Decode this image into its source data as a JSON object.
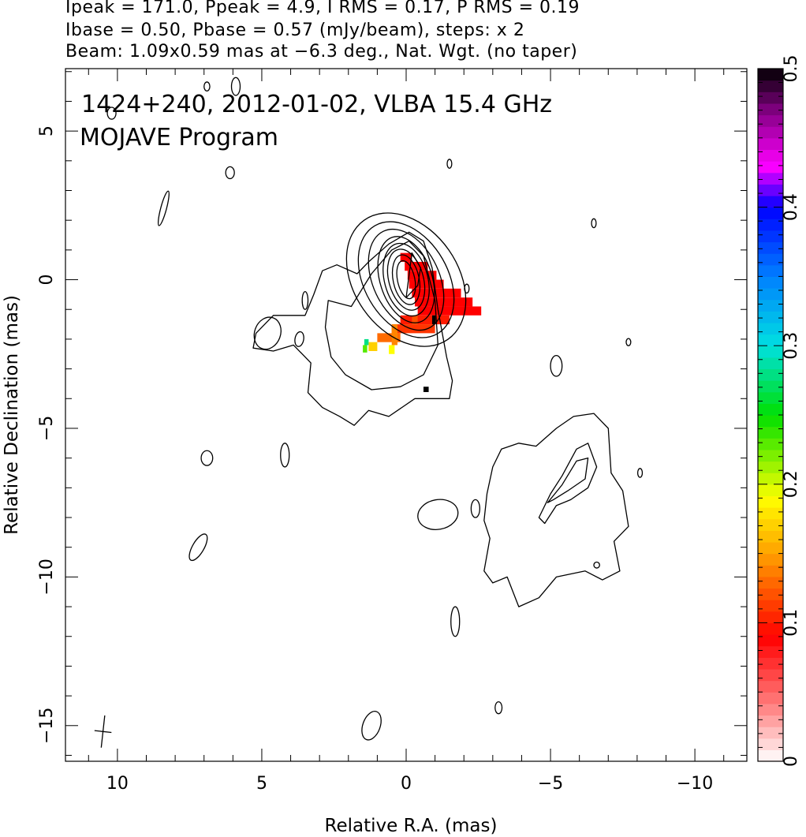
{
  "header": {
    "line1": "Ipeak = 171.0, Ppeak = 4.9, I RMS = 0.17, P RMS = 0.19",
    "line2": "Ibase = 0.50, Pbase = 0.57 (mJy/beam), steps: x 2",
    "line3": "Beam: 1.09x0.59 mas at −6.3 deg., Nat. Wgt. (no taper)"
  },
  "chart_data": {
    "type": "heatmap",
    "annotations": [
      "1424+240, 2012-01-02, VLBA 15.4 GHz",
      "MOJAVE Program"
    ],
    "xlabel": "Relative R.A. (mas)",
    "ylabel": "Relative Declination (mas)",
    "xlim": [
      11.8,
      -11.8
    ],
    "ylim": [
      -16.2,
      7.1
    ],
    "x_ticks": [
      {
        "value": 10,
        "label": "10"
      },
      {
        "value": 5,
        "label": "5"
      },
      {
        "value": 0,
        "label": "0"
      },
      {
        "value": -5,
        "label": "−5"
      },
      {
        "value": -10,
        "label": "−10"
      }
    ],
    "y_ticks": [
      {
        "value": 5,
        "label": "5"
      },
      {
        "value": 0,
        "label": "0"
      },
      {
        "value": -5,
        "label": "−5"
      },
      {
        "value": -10,
        "label": "−10"
      },
      {
        "value": -15,
        "label": "−15"
      }
    ],
    "colorbar": {
      "min": 0,
      "max": 0.5,
      "ticks": [
        {
          "value": 0,
          "label": "0"
        },
        {
          "value": 0.1,
          "label": "0.1"
        },
        {
          "value": 0.2,
          "label": "0.2"
        },
        {
          "value": 0.3,
          "label": "0.3"
        },
        {
          "value": 0.4,
          "label": "0.4"
        },
        {
          "value": 0.5,
          "label": "0.5"
        }
      ],
      "stops": [
        {
          "v": 0.0,
          "color": "#ffffff"
        },
        {
          "v": 0.04,
          "color": "#ff8080"
        },
        {
          "v": 0.09,
          "color": "#ff0000"
        },
        {
          "v": 0.15,
          "color": "#ffa000"
        },
        {
          "v": 0.19,
          "color": "#ffff00"
        },
        {
          "v": 0.25,
          "color": "#00e000"
        },
        {
          "v": 0.3,
          "color": "#00e0e0"
        },
        {
          "v": 0.35,
          "color": "#0080ff"
        },
        {
          "v": 0.4,
          "color": "#0000ff"
        },
        {
          "v": 0.43,
          "color": "#ff00ff"
        },
        {
          "v": 0.47,
          "color": "#800080"
        },
        {
          "v": 0.5,
          "color": "#000000"
        }
      ]
    },
    "core_contours": {
      "center": [
        0.0,
        0.0
      ],
      "levels": [
        {
          "a": 0.3,
          "b": 0.65,
          "angle": -12
        },
        {
          "a": 0.45,
          "b": 0.85,
          "angle": -12
        },
        {
          "a": 0.6,
          "b": 1.05,
          "angle": -15
        },
        {
          "a": 0.75,
          "b": 1.25,
          "angle": -15
        },
        {
          "a": 0.9,
          "b": 1.5,
          "angle": -18
        },
        {
          "a": 1.15,
          "b": 1.8,
          "angle": -25
        },
        {
          "a": 1.45,
          "b": 2.1,
          "angle": -30
        },
        {
          "a": 1.8,
          "b": 2.45,
          "angle": -35
        }
      ]
    },
    "outer_contours": [
      [
        [
          1.7,
          0.2
        ],
        [
          2.4,
          0.5
        ],
        [
          2.9,
          0.3
        ],
        [
          3.2,
          -0.5
        ],
        [
          3.5,
          -1.2
        ],
        [
          4.6,
          -1.2
        ],
        [
          5.2,
          -1.8
        ],
        [
          5.3,
          -2.3
        ],
        [
          4.6,
          -2.4
        ],
        [
          3.9,
          -2.2
        ],
        [
          3.3,
          -2.8
        ],
        [
          3.4,
          -3.8
        ],
        [
          2.9,
          -4.3
        ],
        [
          2.3,
          -4.6
        ],
        [
          1.8,
          -4.9
        ],
        [
          1.3,
          -4.4
        ],
        [
          0.6,
          -4.6
        ],
        [
          -0.3,
          -4.0
        ],
        [
          -1.5,
          -4.0
        ],
        [
          -1.6,
          -3.4
        ],
        [
          -1.4,
          -2.6
        ],
        [
          -1.1,
          -1.0
        ],
        [
          -0.9,
          0.4
        ],
        [
          -0.6,
          1.3
        ],
        [
          -0.1,
          1.6
        ],
        [
          0.6,
          1.2
        ],
        [
          1.3,
          0.6
        ]
      ],
      [
        [
          1.9,
          -0.9
        ],
        [
          2.7,
          -0.7
        ],
        [
          2.8,
          -1.6
        ],
        [
          2.6,
          -2.6
        ],
        [
          2.1,
          -3.2
        ],
        [
          1.2,
          -3.7
        ],
        [
          0.2,
          -3.6
        ],
        [
          -0.6,
          -3.2
        ],
        [
          -1.1,
          -2.2
        ],
        [
          -1.0,
          -0.7
        ],
        [
          -0.6,
          0.8
        ],
        [
          -0.1,
          1.3
        ],
        [
          0.5,
          1.0
        ],
        [
          1.2,
          0.2
        ]
      ],
      [
        [
          -3.0,
          -6.3
        ],
        [
          -3.3,
          -5.7
        ],
        [
          -3.9,
          -5.5
        ],
        [
          -4.5,
          -5.6
        ],
        [
          -5.2,
          -5.0
        ],
        [
          -5.8,
          -4.6
        ],
        [
          -6.5,
          -4.5
        ],
        [
          -7.0,
          -5.0
        ],
        [
          -7.1,
          -6.5
        ],
        [
          -7.5,
          -7.1
        ],
        [
          -7.7,
          -8.3
        ],
        [
          -7.2,
          -8.8
        ],
        [
          -7.4,
          -9.8
        ],
        [
          -6.8,
          -10.1
        ],
        [
          -6.2,
          -9.8
        ],
        [
          -5.2,
          -10.0
        ],
        [
          -4.6,
          -10.7
        ],
        [
          -3.9,
          -11.0
        ],
        [
          -3.5,
          -10.0
        ],
        [
          -3.0,
          -10.2
        ],
        [
          -2.7,
          -9.8
        ],
        [
          -2.9,
          -8.7
        ],
        [
          -2.7,
          -8.1
        ],
        [
          -2.8,
          -7.2
        ]
      ],
      [
        [
          -4.6,
          -8.0
        ],
        [
          -5.0,
          -7.2
        ],
        [
          -5.4,
          -6.6
        ],
        [
          -5.9,
          -5.7
        ],
        [
          -6.3,
          -5.5
        ],
        [
          -6.6,
          -6.3
        ],
        [
          -6.3,
          -7.0
        ],
        [
          -5.7,
          -7.4
        ],
        [
          -5.2,
          -7.6
        ],
        [
          -4.8,
          -8.2
        ]
      ],
      [
        [
          -4.9,
          -7.5
        ],
        [
          -5.4,
          -6.9
        ],
        [
          -5.9,
          -6.1
        ],
        [
          -6.3,
          -6.0
        ],
        [
          -6.2,
          -6.7
        ],
        [
          -5.6,
          -7.1
        ],
        [
          -5.1,
          -7.4
        ]
      ],
      [
        [
          0.0,
          -0.6
        ],
        [
          -0.4,
          -0.2
        ],
        [
          -0.5,
          0.4
        ],
        [
          -0.2,
          0.9
        ]
      ]
    ],
    "small_contours": [
      {
        "center": [
          4.8,
          -1.8
        ],
        "a": 0.45,
        "b": 0.55,
        "angle": 20
      },
      {
        "center": [
          3.7,
          -2.0
        ],
        "a": 0.15,
        "b": 0.25,
        "angle": 10
      },
      {
        "center": [
          3.5,
          -0.7
        ],
        "a": 0.1,
        "b": 0.3,
        "angle": 0
      },
      {
        "center": [
          4.2,
          -5.9
        ],
        "a": 0.15,
        "b": 0.4,
        "angle": 0
      },
      {
        "center": [
          6.9,
          -6.0
        ],
        "a": 0.2,
        "b": 0.25,
        "angle": 0
      },
      {
        "center": [
          7.2,
          -9.0
        ],
        "a": 0.2,
        "b": 0.5,
        "angle": 30
      },
      {
        "center": [
          -1.1,
          -7.9
        ],
        "a": 0.7,
        "b": 0.5,
        "angle": -10
      },
      {
        "center": [
          -2.4,
          -7.7
        ],
        "a": 0.15,
        "b": 0.3,
        "angle": 0
      },
      {
        "center": [
          -1.7,
          -11.5
        ],
        "a": 0.15,
        "b": 0.5,
        "angle": 0
      },
      {
        "center": [
          1.2,
          -15.0
        ],
        "a": 0.3,
        "b": 0.5,
        "angle": 20
      },
      {
        "center": [
          -5.2,
          -2.9
        ],
        "a": 0.2,
        "b": 0.35,
        "angle": 0
      },
      {
        "center": [
          -7.7,
          -2.1
        ],
        "a": 0.08,
        "b": 0.12,
        "angle": 0
      },
      {
        "center": [
          -8.1,
          -6.5
        ],
        "a": 0.08,
        "b": 0.15,
        "angle": 0
      },
      {
        "center": [
          -6.6,
          -9.6
        ],
        "a": 0.1,
        "b": 0.1,
        "angle": 0
      },
      {
        "center": [
          -6.5,
          1.9
        ],
        "a": 0.08,
        "b": 0.15,
        "angle": 0
      },
      {
        "center": [
          -1.5,
          3.9
        ],
        "a": 0.08,
        "b": 0.15,
        "angle": 0
      },
      {
        "center": [
          -2.1,
          -0.3
        ],
        "a": 0.08,
        "b": 0.15,
        "angle": 0
      },
      {
        "center": [
          6.1,
          3.6
        ],
        "a": 0.15,
        "b": 0.2,
        "angle": 0
      },
      {
        "center": [
          8.4,
          2.4
        ],
        "a": 0.1,
        "b": 0.6,
        "angle": 15
      },
      {
        "center": [
          5.9,
          6.5
        ],
        "a": 0.15,
        "b": 0.3,
        "angle": 0
      },
      {
        "center": [
          6.9,
          6.5
        ],
        "a": 0.1,
        "b": 0.15,
        "angle": 0
      },
      {
        "center": [
          -3.2,
          -14.4
        ],
        "a": 0.12,
        "b": 0.2,
        "angle": 0
      },
      {
        "center": [
          10.2,
          5.6
        ],
        "a": 0.15,
        "b": 0.2,
        "angle": 0
      }
    ],
    "polarization_pixels": [
      {
        "x": 0.2,
        "y": 0.9,
        "w": 0.4,
        "h": 0.3,
        "value": 0.09
      },
      {
        "x": 0.05,
        "y": 0.6,
        "w": 0.8,
        "h": 0.3,
        "value": 0.09
      },
      {
        "x": -0.05,
        "y": 0.3,
        "w": 1.0,
        "h": 0.3,
        "value": 0.09
      },
      {
        "x": -0.1,
        "y": 0.0,
        "w": 1.2,
        "h": 0.3,
        "value": 0.09
      },
      {
        "x": -0.2,
        "y": -0.3,
        "w": 1.7,
        "h": 0.3,
        "value": 0.09
      },
      {
        "x": -0.3,
        "y": -0.6,
        "w": 2.0,
        "h": 0.3,
        "value": 0.09
      },
      {
        "x": -0.4,
        "y": -0.9,
        "w": 2.2,
        "h": 0.3,
        "value": 0.09
      },
      {
        "x": 0.2,
        "y": -1.2,
        "w": 1.7,
        "h": 0.3,
        "value": 0.1
      },
      {
        "x": 0.5,
        "y": -1.5,
        "w": 1.5,
        "h": 0.3,
        "value": 0.11
      },
      {
        "x": 1.0,
        "y": -1.8,
        "w": 0.8,
        "h": 0.3,
        "value": 0.13
      },
      {
        "x": 1.3,
        "y": -2.1,
        "w": 0.3,
        "h": 0.3,
        "value": 0.17
      },
      {
        "x": 1.5,
        "y": -2.2,
        "w": 0.15,
        "h": 0.25,
        "value": 0.23
      },
      {
        "x": 1.45,
        "y": -2.0,
        "w": 0.15,
        "h": 0.2,
        "value": 0.28
      },
      {
        "x": -0.2,
        "y": -1.2,
        "w": 0.2,
        "h": 0.3,
        "value": 0.12
      },
      {
        "x": 0.5,
        "y": -1.5,
        "w": 0.2,
        "h": 0.7,
        "value": 0.14
      },
      {
        "x": 0.6,
        "y": -2.2,
        "w": 0.2,
        "h": 0.3,
        "value": 0.19
      },
      {
        "x": -0.6,
        "y": -3.6,
        "w": 0.18,
        "h": 0.18,
        "value": 0.5
      },
      {
        "x": -0.9,
        "y": -1.2,
        "w": 0.12,
        "h": 0.3,
        "value": 0.5
      }
    ],
    "beam": {
      "center": [
        10.5,
        -15.2
      ],
      "major": 1.09,
      "minor": 0.59,
      "pa_deg": -6.3
    }
  }
}
